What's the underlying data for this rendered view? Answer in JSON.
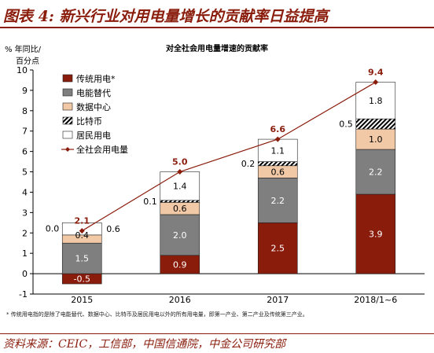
{
  "figure": {
    "title": "图表 4: 新兴行业对用电量增长的贡献率日益提高",
    "footnote": "* 传统用电指的是除了电能替代、数据中心、比特币及居民用电以外的所有用电量，即第一产业、第二产业及传统第三产业。",
    "source": "资料来源：CEIC，工信部，中国信通院，中金公司研究部"
  },
  "colors": {
    "traditional": "#8a1c0c",
    "substitution": "#7f7f7f",
    "datacenter": "#f2c9a6",
    "bitcoin": "hatch",
    "residential": "#ffffff",
    "total_line": "#8a1c0c"
  },
  "chart_data": {
    "type": "bar",
    "stacked": true,
    "title": "对全社会用电量增速的贡献率",
    "ylabel_line1": "% 年同比/",
    "ylabel_line2": "百分点",
    "ylim": [
      -1,
      10
    ],
    "yticks": [
      "-1",
      "0",
      "1",
      "2",
      "3",
      "4",
      "5",
      "6",
      "7",
      "8",
      "9",
      "10"
    ],
    "categories": [
      "2015",
      "2016",
      "2017",
      "2018/1~6"
    ],
    "series": [
      {
        "name": "传统用电*",
        "key": "traditional",
        "values": [
          -0.5,
          0.9,
          2.5,
          3.9
        ],
        "labels": [
          "-0.5",
          "0.9",
          "2.5",
          "3.9"
        ]
      },
      {
        "name": "电能替代",
        "key": "substitution",
        "values": [
          1.5,
          2.0,
          2.2,
          2.2
        ],
        "labels": [
          "1.5",
          "2.0",
          "2.2",
          "2.2"
        ]
      },
      {
        "name": "数据中心",
        "key": "datacenter",
        "values": [
          0.4,
          0.6,
          0.6,
          1.0
        ],
        "labels": [
          "0.4",
          "0.6",
          "0.6",
          "1.0"
        ]
      },
      {
        "name": "比特币",
        "key": "bitcoin",
        "values": [
          0.0,
          0.1,
          0.2,
          0.5
        ],
        "labels": [
          "0.0",
          "0.1",
          "0.2",
          "0.5"
        ]
      },
      {
        "name": "居民用电",
        "key": "residential",
        "values": [
          0.6,
          1.4,
          1.1,
          1.8
        ],
        "labels": [
          "0.6",
          "1.4",
          "1.1",
          "1.8"
        ]
      }
    ],
    "line": {
      "name": "全社会用电量",
      "values": [
        2.1,
        5.0,
        6.6,
        9.4
      ],
      "labels": [
        "2.1",
        "5.0",
        "6.6",
        "9.4"
      ]
    },
    "legend_position": "top-left",
    "grid": false
  }
}
